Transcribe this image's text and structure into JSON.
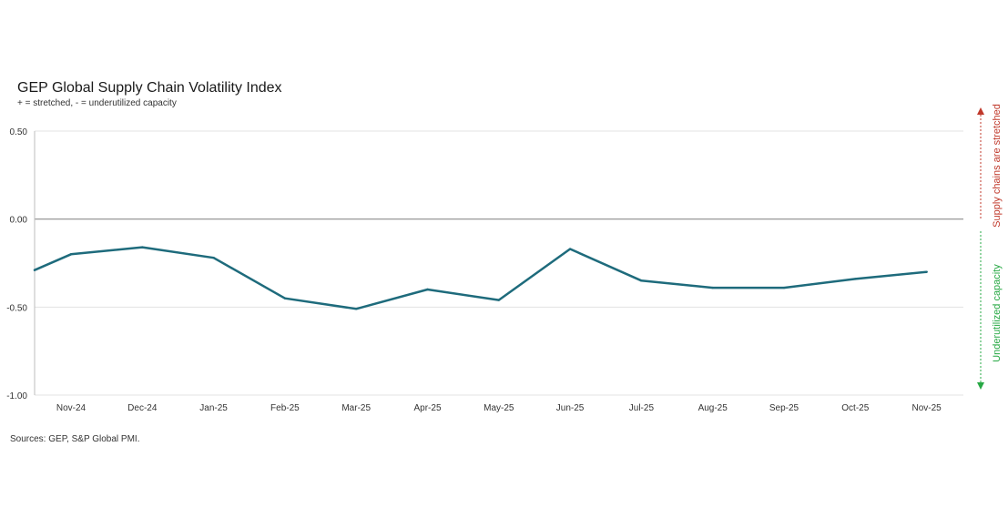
{
  "chart_data": {
    "type": "line",
    "title": "GEP Global Supply Chain Volatility Index",
    "subtitle": "+ = stretched, - = underutilized capacity",
    "source": "Sources: GEP, S&P Global PMI.",
    "categories": [
      "Nov-24",
      "Dec-24",
      "Jan-25",
      "Feb-25",
      "Mar-25",
      "Apr-25",
      "May-25",
      "Jun-25",
      "Jul-25",
      "Aug-25",
      "Sep-25",
      "Oct-25",
      "Nov-25"
    ],
    "series": [
      {
        "name": "GEP Global Supply Chain Volatility Index",
        "color": "#1e6b7c",
        "start_value": -0.29,
        "values": [
          -0.2,
          -0.16,
          -0.22,
          -0.45,
          -0.51,
          -0.4,
          -0.46,
          -0.17,
          -0.35,
          -0.39,
          -0.39,
          -0.34,
          -0.3
        ]
      }
    ],
    "ylim": [
      -1.0,
      0.5
    ],
    "yticks": [
      {
        "value": 0.5,
        "label": "0.50"
      },
      {
        "value": 0.0,
        "label": "0.00"
      },
      {
        "value": -0.5,
        "label": "-0.50"
      },
      {
        "value": -1.0,
        "label": "-1.00"
      }
    ],
    "grid": true,
    "annotations": {
      "up": {
        "text": "Supply chains are stretched",
        "color": "#c0392b"
      },
      "down": {
        "text": "Underutilized capacity",
        "color": "#27a844"
      }
    }
  }
}
